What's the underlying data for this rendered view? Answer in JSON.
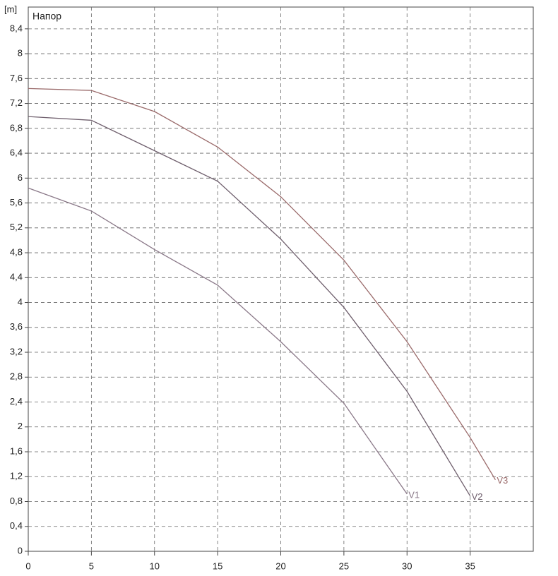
{
  "chart_data": {
    "type": "line",
    "title": "Напор",
    "y_unit": "[m]",
    "x": [
      0,
      5,
      10,
      15,
      20,
      25,
      30,
      35,
      37
    ],
    "series": [
      {
        "name": "V1",
        "color": "#8a7888",
        "values": [
          5.84,
          5.47,
          4.85,
          4.28,
          3.37,
          2.38,
          0.92,
          null,
          null
        ]
      },
      {
        "name": "V2",
        "color": "#6e5e6c",
        "values": [
          6.99,
          6.93,
          6.44,
          5.95,
          5.02,
          3.92,
          2.57,
          0.89,
          null
        ]
      },
      {
        "name": "V3",
        "color": "#9a6a6a",
        "values": [
          7.44,
          7.41,
          7.07,
          6.5,
          5.7,
          4.68,
          3.37,
          1.83,
          1.15
        ]
      }
    ],
    "xlim": [
      0,
      40
    ],
    "xticks": [
      0,
      5,
      10,
      15,
      20,
      25,
      30,
      35
    ],
    "ylim": [
      0,
      8.75
    ],
    "yticks": [
      0,
      {
        "value": 0.4,
        "label": "0,4"
      },
      {
        "value": 0.8,
        "label": "0,8"
      },
      {
        "value": 1.2,
        "label": "1,2"
      },
      {
        "value": 1.6,
        "label": "1,6"
      },
      2,
      {
        "value": 2.4,
        "label": "2,4"
      },
      {
        "value": 2.8,
        "label": "2,8"
      },
      {
        "value": 3.2,
        "label": "3,2"
      },
      {
        "value": 3.6,
        "label": "3,6"
      },
      4,
      {
        "value": 4.4,
        "label": "4,4"
      },
      {
        "value": 4.8,
        "label": "4,8"
      },
      {
        "value": 5.2,
        "label": "5,2"
      },
      {
        "value": 5.6,
        "label": "5,6"
      },
      6,
      {
        "value": 6.4,
        "label": "6,4"
      },
      {
        "value": 6.8,
        "label": "6,8"
      },
      {
        "value": 7.2,
        "label": "7,2"
      },
      {
        "value": 7.6,
        "label": "7,6"
      },
      8,
      {
        "value": 8.4,
        "label": "8,4"
      }
    ],
    "grid": true
  }
}
